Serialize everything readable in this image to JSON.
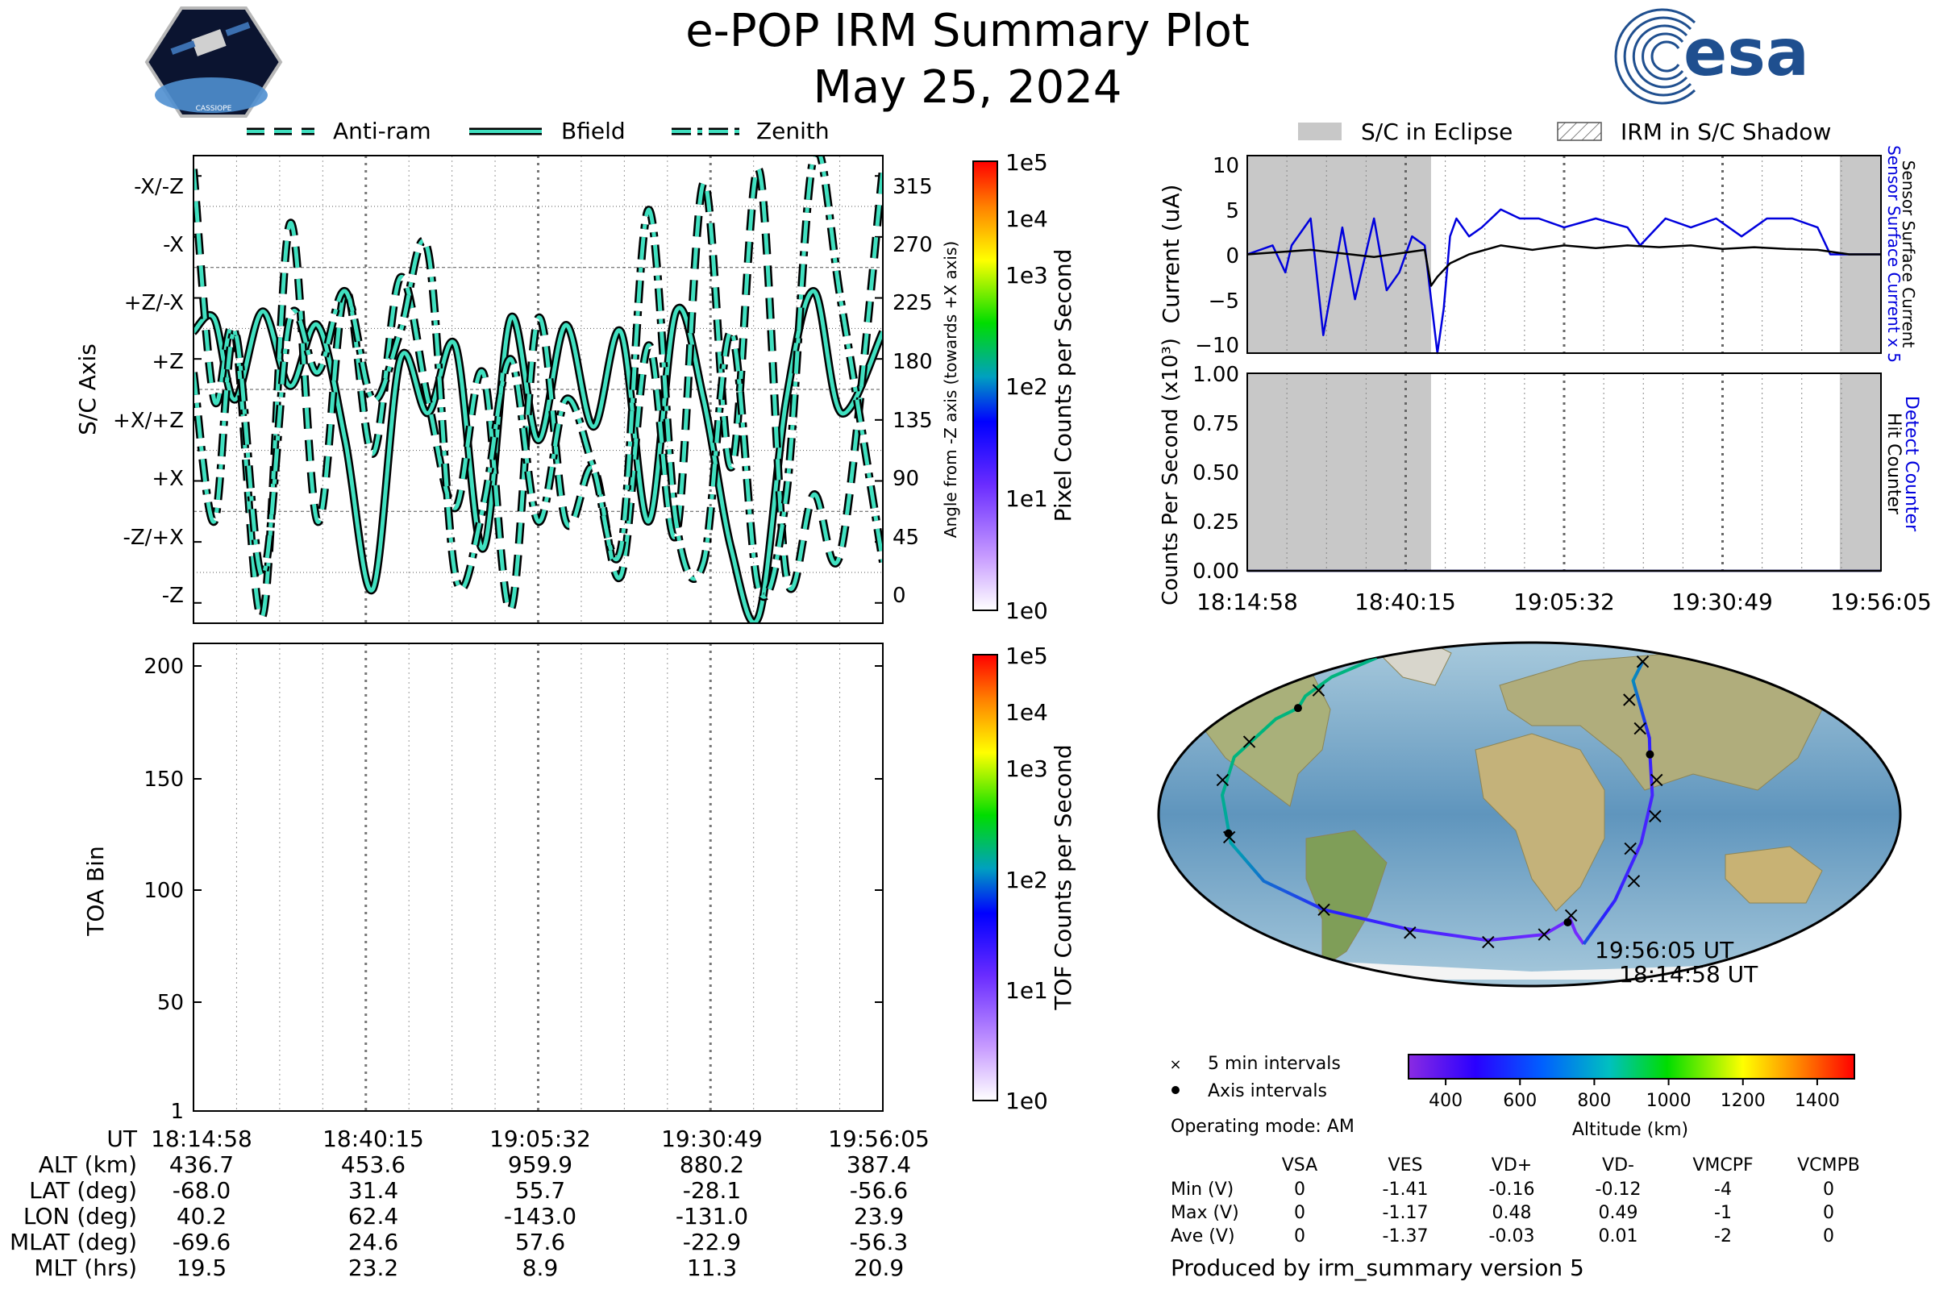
{
  "title": "e-POP IRM Summary Plot",
  "date": "May 25, 2024",
  "logos": {
    "left_text": "CASSIOPE",
    "right_text": "esa"
  },
  "top_legend": [
    "Anti-ram",
    "Bfield",
    "Zenith"
  ],
  "right_legend": [
    "S/C in Eclipse",
    "IRM in S/C Shadow"
  ],
  "colors": {
    "trace_fill": "#40e0c0",
    "trace_edge": "#000000",
    "sensor": "#0000dd",
    "hit": "#000000",
    "eclipse": "#c8c8c8"
  },
  "chart_data": [
    {
      "type": "line",
      "name": "sc-axis-panel",
      "ylabel": "S/C Axis",
      "ylabel_right": "Angle from -Z axis (towards +X axis)",
      "ylim": [
        -15,
        330
      ],
      "left_ticks": [
        {
          "label": "-X/-Z",
          "value": 315
        },
        {
          "label": "-X",
          "value": 270
        },
        {
          "label": "+Z/-X",
          "value": 225
        },
        {
          "label": "+Z",
          "value": 180
        },
        {
          "label": "+X/+Z",
          "value": 135
        },
        {
          "label": "+X",
          "value": 90
        },
        {
          "label": "-Z/+X",
          "value": 45
        },
        {
          "label": "-Z",
          "value": 0
        }
      ],
      "right_ticks": [
        "315",
        "270",
        "225",
        "180",
        "135",
        "90",
        "45",
        "0"
      ],
      "colorbar": {
        "label": "Pixel Counts per Second",
        "ticks": [
          "1e5",
          "1e4",
          "1e3",
          "1e2",
          "1e1",
          "1e0"
        ]
      },
      "series": [
        {
          "name": "Bfield",
          "style": "solid",
          "x": [
            0,
            0.03,
            0.06,
            0.1,
            0.14,
            0.18,
            0.22,
            0.26,
            0.3,
            0.34,
            0.38,
            0.42,
            0.46,
            0.5,
            0.54,
            0.58,
            0.62,
            0.66,
            0.7,
            0.74,
            0.78,
            0.82,
            0.86,
            0.9,
            0.94,
            1
          ],
          "y": [
            200,
            210,
            150,
            215,
            160,
            205,
            120,
            10,
            180,
            140,
            190,
            40,
            210,
            120,
            205,
            130,
            200,
            60,
            215,
            150,
            40,
            -10,
            150,
            230,
            140,
            200
          ]
        },
        {
          "name": "Anti-ram",
          "style": "dashed",
          "x": [
            0,
            0.03,
            0.06,
            0.1,
            0.14,
            0.18,
            0.22,
            0.26,
            0.3,
            0.34,
            0.38,
            0.42,
            0.46,
            0.5,
            0.54,
            0.58,
            0.62,
            0.66,
            0.7,
            0.74,
            0.78,
            0.82,
            0.86,
            0.9,
            0.94,
            1
          ],
          "y": [
            320,
            150,
            200,
            -10,
            280,
            60,
            230,
            110,
            240,
            150,
            70,
            170,
            -5,
            210,
            60,
            100,
            20,
            190,
            50,
            310,
            100,
            320,
            20,
            80,
            40,
            320
          ]
        },
        {
          "name": "Zenith",
          "style": "dashdot",
          "x": [
            0,
            0.03,
            0.06,
            0.1,
            0.14,
            0.18,
            0.22,
            0.26,
            0.3,
            0.34,
            0.38,
            0.42,
            0.46,
            0.5,
            0.54,
            0.58,
            0.62,
            0.66,
            0.7,
            0.74,
            0.78,
            0.82,
            0.86,
            0.9,
            0.94,
            1
          ],
          "y": [
            170,
            60,
            200,
            20,
            210,
            170,
            230,
            150,
            200,
            260,
            20,
            70,
            180,
            60,
            150,
            100,
            40,
            290,
            60,
            30,
            200,
            10,
            80,
            330,
            220,
            30
          ]
        }
      ]
    },
    {
      "type": "heatmap",
      "name": "toa-panel",
      "ylabel": "TOA Bin",
      "yticks": [
        "200",
        "150",
        "100",
        "50",
        "1"
      ],
      "ylim": [
        1,
        210
      ],
      "colorbar": {
        "label": "TOF Counts per Second",
        "ticks": [
          "1e5",
          "1e4",
          "1e3",
          "1e2",
          "1e1",
          "1e0"
        ]
      },
      "values": []
    },
    {
      "type": "line",
      "name": "current-panel",
      "ylabel": "Current (uA)",
      "ylabel_right_1": "Sensor Surface Current x 5",
      "ylabel_right_2": "Sensor Surface Current",
      "ylim": [
        -11,
        11
      ],
      "yticks": [
        "10",
        "5",
        "0",
        "−5",
        "−10"
      ],
      "eclipse_spans": [
        [
          0,
          0.29
        ],
        [
          0.935,
          1
        ]
      ],
      "series": [
        {
          "name": "Sensor Surface Current x 5",
          "x": [
            0,
            0.04,
            0.06,
            0.07,
            0.1,
            0.12,
            0.13,
            0.15,
            0.17,
            0.2,
            0.22,
            0.24,
            0.26,
            0.28,
            0.3,
            0.31,
            0.32,
            0.33,
            0.35,
            0.37,
            0.4,
            0.43,
            0.46,
            0.5,
            0.55,
            0.6,
            0.62,
            0.66,
            0.7,
            0.74,
            0.78,
            0.82,
            0.86,
            0.9,
            0.92,
            0.94,
            0.97,
            1
          ],
          "y": [
            0,
            1,
            -2,
            1,
            4,
            -9,
            -5,
            3,
            -5,
            4,
            -4,
            -2,
            2,
            1,
            -11,
            -6,
            2,
            4,
            2,
            3,
            5,
            4,
            4,
            3,
            4,
            3,
            1,
            4,
            3,
            4,
            2,
            4,
            4,
            3,
            0,
            0,
            0,
            0
          ]
        },
        {
          "name": "Sensor Surface Current",
          "x": [
            0,
            0.1,
            0.2,
            0.28,
            0.29,
            0.3,
            0.32,
            0.35,
            0.4,
            0.45,
            0.5,
            0.55,
            0.6,
            0.65,
            0.7,
            0.75,
            0.8,
            0.85,
            0.9,
            0.95,
            1
          ],
          "y": [
            0,
            0.5,
            -0.3,
            0.5,
            -3.5,
            -2.5,
            -1,
            0,
            1,
            0.5,
            1,
            0.7,
            1,
            0.8,
            1,
            0.6,
            0.8,
            0.6,
            0.5,
            0,
            0
          ]
        }
      ]
    },
    {
      "type": "line",
      "name": "counts-panel",
      "ylabel": "Counts Per Second (x10³)",
      "ylabel_right_1": "Detect Counter",
      "ylabel_right_2": "Hit Counter",
      "ylim": [
        0,
        1
      ],
      "yticks": [
        "1.00",
        "0.75",
        "0.50",
        "0.25",
        "0.00"
      ],
      "eclipse_spans": [
        [
          0,
          0.29
        ],
        [
          0.935,
          1
        ]
      ],
      "xticks": [
        "18:14:58",
        "18:40:15",
        "19:05:32",
        "19:30:49",
        "19:56:05"
      ],
      "series": [
        {
          "name": "Detect Counter",
          "x": [
            0,
            1
          ],
          "y": [
            0,
            0
          ]
        },
        {
          "name": "Hit Counter",
          "x": [
            0,
            1
          ],
          "y": [
            0,
            0
          ]
        }
      ]
    },
    {
      "type": "scatter",
      "name": "ground-track-map",
      "track_lonlat": [
        [
          40.2,
          -68
        ],
        [
          31,
          -62
        ],
        [
          25,
          -55
        ],
        [
          10,
          -63
        ],
        [
          -30,
          -66
        ],
        [
          -80,
          -60
        ],
        [
          -120,
          -50
        ],
        [
          -140,
          -35
        ],
        [
          -147,
          -15
        ],
        [
          -150,
          10
        ],
        [
          -152,
          30
        ],
        [
          -148,
          50
        ],
        [
          -143,
          55.7
        ],
        [
          -150,
          62
        ],
        [
          -160,
          72
        ],
        [
          -180,
          82
        ],
        [
          120,
          80
        ],
        [
          80,
          70
        ],
        [
          65,
          40
        ],
        [
          62.4,
          31.4
        ],
        [
          60,
          10
        ],
        [
          55,
          -15
        ],
        [
          48,
          -45
        ],
        [
          40.2,
          -68
        ]
      ],
      "interval_marks": [
        [
          -147,
          -12
        ],
        [
          -152,
          18
        ],
        [
          -150,
          38
        ],
        [
          -148,
          65
        ],
        [
          -120,
          -50
        ],
        [
          -80,
          -62
        ],
        [
          -30,
          -67
        ],
        [
          10,
          -63
        ],
        [
          25,
          -53
        ],
        [
          55,
          -35
        ],
        [
          50,
          -18
        ],
        [
          61,
          -1
        ],
        [
          63,
          18
        ],
        [
          62,
          45
        ],
        [
          65,
          60
        ],
        [
          120,
          80
        ]
      ],
      "axis_marks": [
        [
          -143,
          55.7
        ],
        [
          -147,
          -10
        ],
        [
          62.4,
          31.4
        ],
        [
          23.9,
          -56.6
        ]
      ],
      "annotations": [
        "19:56:05 UT",
        "18:14:58 UT"
      ],
      "legend": [
        "5 min intervals",
        "Axis intervals"
      ],
      "operating_mode": "Operating mode: AM",
      "colorbar": {
        "label": "Altitude (km)",
        "ticks": [
          "400",
          "600",
          "800",
          "1000",
          "1200",
          "1400"
        ],
        "range": [
          300,
          1500
        ]
      }
    }
  ],
  "ut_table": {
    "rows": [
      {
        "label": "UT",
        "values": [
          "18:14:58",
          "18:40:15",
          "19:05:32",
          "19:30:49",
          "19:56:05"
        ]
      },
      {
        "label": "ALT (km)",
        "values": [
          "436.7",
          "453.6",
          "959.9",
          "880.2",
          "387.4"
        ]
      },
      {
        "label": "LAT (deg)",
        "values": [
          "-68.0",
          "31.4",
          "55.7",
          "-28.1",
          "-56.6"
        ]
      },
      {
        "label": "LON (deg)",
        "values": [
          "40.2",
          "62.4",
          "-143.0",
          "-131.0",
          "23.9"
        ]
      },
      {
        "label": "MLAT (deg)",
        "values": [
          "-69.6",
          "24.6",
          "57.6",
          "-22.9",
          "-56.3"
        ]
      },
      {
        "label": "MLT (hrs)",
        "values": [
          "19.5",
          "23.2",
          "8.9",
          "11.3",
          "20.9"
        ]
      }
    ]
  },
  "voltage_table": {
    "headers": [
      "VSA",
      "VES",
      "VD+",
      "VD-",
      "VMCPF",
      "VCMPB"
    ],
    "rows": [
      {
        "label": "Min (V)",
        "values": [
          "0",
          "-1.41",
          "-0.16",
          "-0.12",
          "-4",
          "0"
        ]
      },
      {
        "label": "Max (V)",
        "values": [
          "0",
          "-1.17",
          "0.48",
          "0.49",
          "-1",
          "0"
        ]
      },
      {
        "label": "Ave (V)",
        "values": [
          "0",
          "-1.37",
          "-0.03",
          "0.01",
          "-2",
          "0"
        ]
      }
    ]
  },
  "footer": "Produced by irm_summary version 5"
}
